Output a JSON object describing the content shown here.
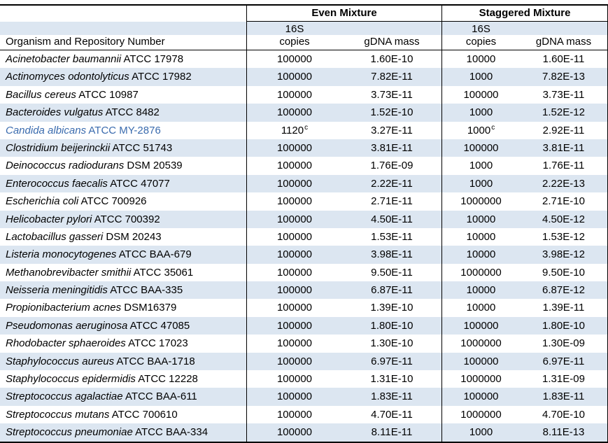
{
  "colors": {
    "band_fill": "#dce6f1",
    "highlight_text": "#3a6bae",
    "border": "#000000"
  },
  "header": {
    "organism_col": "Organism and Repository Number",
    "even_group": "Even Mixture",
    "staggered_group": "Staggered Mixture",
    "sub": {
      "s16": "16S",
      "copies": "copies",
      "gdna_mass": "gDNA mass"
    }
  },
  "rows": [
    {
      "genus_species": "Acinetobacter baumannii",
      "strain": "ATCC 17978",
      "even_copies": "100000",
      "even_mass": "1.60E-10",
      "stag_copies": "10000",
      "stag_mass": "1.60E-11"
    },
    {
      "genus_species": "Actinomyces odontolyticus",
      "strain": "ATCC 17982",
      "even_copies": "100000",
      "even_mass": "7.82E-11",
      "stag_copies": "1000",
      "stag_mass": "7.82E-13"
    },
    {
      "genus_species": "Bacillus cereus",
      "strain": "ATCC 10987",
      "even_copies": "100000",
      "even_mass": "3.73E-11",
      "stag_copies": "100000",
      "stag_mass": "3.73E-11"
    },
    {
      "genus_species": "Bacteroides vulgatus",
      "strain": "ATCC 8482",
      "even_copies": "100000",
      "even_mass": "1.52E-10",
      "stag_copies": "1000",
      "stag_mass": "1.52E-12"
    },
    {
      "genus_species": "Candida albicans",
      "strain": "ATCC MY-2876",
      "even_copies": "1120",
      "even_copies_sup": "c",
      "even_mass": "3.27E-11",
      "stag_copies": "1000",
      "stag_copies_sup": "c",
      "stag_mass": "2.92E-11",
      "highlight": true
    },
    {
      "genus_species": "Clostridium beijerinckii",
      "strain": "ATCC 51743",
      "even_copies": "100000",
      "even_mass": "3.81E-11",
      "stag_copies": "100000",
      "stag_mass": "3.81E-11"
    },
    {
      "genus_species": "Deinococcus radiodurans",
      "strain": "DSM 20539",
      "even_copies": "100000",
      "even_mass": "1.76E-09",
      "stag_copies": "1000",
      "stag_mass": "1.76E-11"
    },
    {
      "genus_species": "Enterococcus faecalis",
      "strain": "ATCC 47077",
      "even_copies": "100000",
      "even_mass": "2.22E-11",
      "stag_copies": "1000",
      "stag_mass": "2.22E-13"
    },
    {
      "genus_species": "Escherichia coli",
      "strain": "ATCC 700926",
      "even_copies": "100000",
      "even_mass": "2.71E-11",
      "stag_copies": "1000000",
      "stag_mass": "2.71E-10"
    },
    {
      "genus_species": "Helicobacter pylori",
      "strain": "ATCC 700392",
      "even_copies": "100000",
      "even_mass": "4.50E-11",
      "stag_copies": "10000",
      "stag_mass": "4.50E-12"
    },
    {
      "genus_species": "Lactobacillus gasseri",
      "strain": "DSM 20243",
      "even_copies": "100000",
      "even_mass": "1.53E-11",
      "stag_copies": "10000",
      "stag_mass": "1.53E-12"
    },
    {
      "genus_species": "Listeria monocytogenes",
      "strain": "ATCC BAA-679",
      "even_copies": "100000",
      "even_mass": "3.98E-11",
      "stag_copies": "10000",
      "stag_mass": "3.98E-12"
    },
    {
      "genus_species": "Methanobrevibacter smithii",
      "strain": "ATCC 35061",
      "even_copies": "100000",
      "even_mass": "9.50E-11",
      "stag_copies": "1000000",
      "stag_mass": "9.50E-10"
    },
    {
      "genus_species": "Neisseria meningitidis",
      "strain": "ATCC BAA-335",
      "even_copies": "100000",
      "even_mass": "6.87E-11",
      "stag_copies": "10000",
      "stag_mass": "6.87E-12"
    },
    {
      "genus_species": "Propionibacterium acnes",
      "strain": "DSM16379",
      "even_copies": "100000",
      "even_mass": "1.39E-10",
      "stag_copies": "10000",
      "stag_mass": "1.39E-11"
    },
    {
      "genus_species": "Pseudomonas aeruginosa",
      "strain": "ATCC 47085",
      "even_copies": "100000",
      "even_mass": "1.80E-10",
      "stag_copies": "100000",
      "stag_mass": "1.80E-10"
    },
    {
      "genus_species": "Rhodobacter sphaeroides",
      "strain": "ATCC 17023",
      "even_copies": "100000",
      "even_mass": "1.30E-10",
      "stag_copies": "1000000",
      "stag_mass": "1.30E-09"
    },
    {
      "genus_species": "Staphylococcus aureus",
      "strain": "ATCC BAA-1718",
      "even_copies": "100000",
      "even_mass": "6.97E-11",
      "stag_copies": "100000",
      "stag_mass": "6.97E-11"
    },
    {
      "genus_species": "Staphylococcus epidermidis",
      "strain": "ATCC 12228",
      "even_copies": "100000",
      "even_mass": "1.31E-10",
      "stag_copies": "1000000",
      "stag_mass": "1.31E-09"
    },
    {
      "genus_species": "Streptococcus agalactiae",
      "strain": "ATCC BAA-611",
      "even_copies": "100000",
      "even_mass": "1.83E-11",
      "stag_copies": "100000",
      "stag_mass": "1.83E-11"
    },
    {
      "genus_species": "Streptococcus mutans",
      "strain": "ATCC 700610",
      "even_copies": "100000",
      "even_mass": "4.70E-11",
      "stag_copies": "1000000",
      "stag_mass": "4.70E-10"
    },
    {
      "genus_species": "Streptococcus pneumoniae",
      "strain": "ATCC BAA-334",
      "even_copies": "100000",
      "even_mass": "8.11E-11",
      "stag_copies": "1000",
      "stag_mass": "8.11E-13"
    }
  ]
}
